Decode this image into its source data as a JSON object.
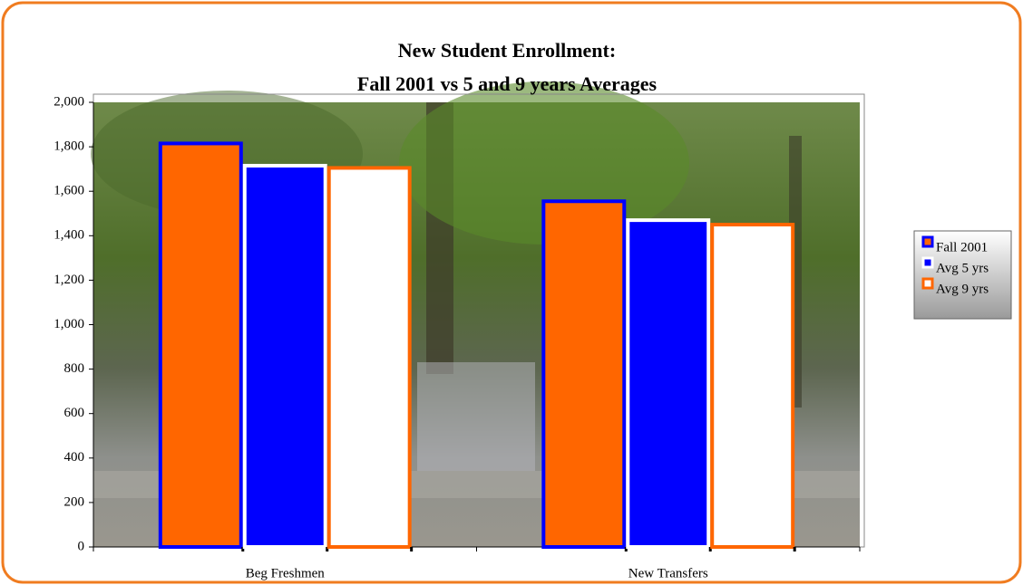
{
  "chart_data": {
    "type": "bar",
    "title": [
      "New Student Enrollment:",
      "Fall 2001 vs 5 and 9 years Averages"
    ],
    "categories": [
      "Beg Freshmen",
      "New Transfers"
    ],
    "series": [
      {
        "name": "Fall 2001",
        "color": "#ff6600",
        "edgecolor": "#0000ff",
        "values": [
          1815,
          1555
        ]
      },
      {
        "name": "Avg 5 yrs",
        "color": "#0000ff",
        "edgecolor": "#ffffff",
        "values": [
          1715,
          1470
        ]
      },
      {
        "name": "Avg 9 yrs",
        "color": "#ffffff",
        "edgecolor": "#ff6600",
        "values": [
          1705,
          1450
        ]
      }
    ],
    "ylim": [
      0,
      2000
    ],
    "yticks": [
      0,
      200,
      400,
      600,
      800,
      {
        "value": 1000,
        "label": "1,000"
      },
      {
        "value": 1200,
        "label": "1,200"
      },
      {
        "value": 1400,
        "label": "1,400"
      },
      {
        "value": 1600,
        "label": "1,600"
      },
      {
        "value": 1800,
        "label": "1,800"
      },
      {
        "value": 2000,
        "label": "2,000"
      }
    ],
    "legend": "right"
  }
}
